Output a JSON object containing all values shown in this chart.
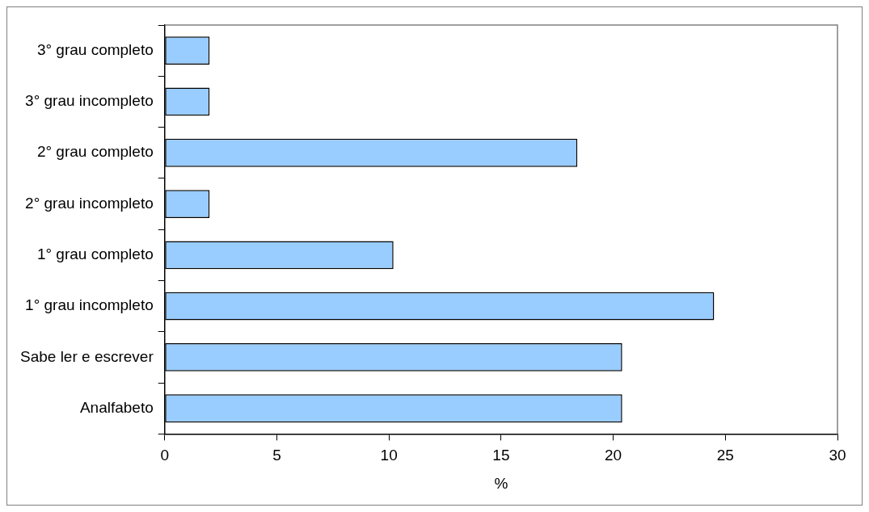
{
  "chart_data": {
    "type": "bar",
    "orientation": "horizontal",
    "xlabel": "%",
    "categories": [
      "3° grau completo",
      "3° grau incompleto",
      "2° grau completo",
      "2° grau incompleto",
      "1° grau completo",
      "1° grau incompleto",
      "Sabe ler e escrever",
      "Analfabeto"
    ],
    "values": [
      2.0,
      2.0,
      18.4,
      2.0,
      10.2,
      24.5,
      20.4,
      20.4
    ],
    "color": "#99ccff",
    "xlim": [
      0,
      30
    ],
    "xticks": [
      0,
      5,
      10,
      15,
      20,
      25,
      30
    ],
    "grid": false,
    "legend": false
  }
}
